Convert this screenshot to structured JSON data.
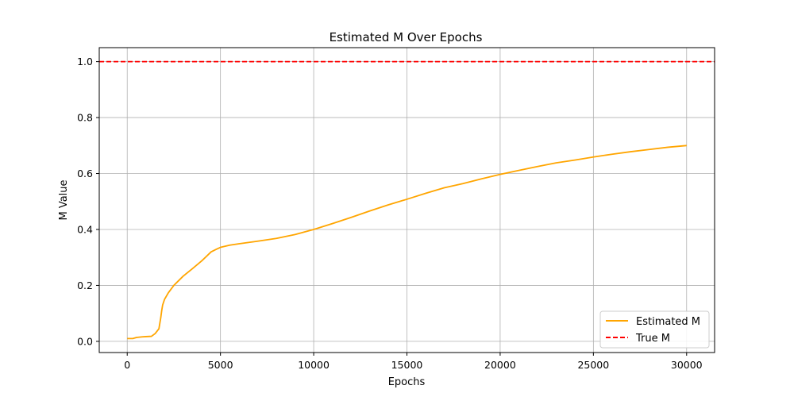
{
  "chart_data": {
    "type": "line",
    "title": "Estimated M Over Epochs",
    "xlabel": "Epochs",
    "ylabel": "M Value",
    "xlim": [
      -1500,
      31500
    ],
    "ylim": [
      -0.04,
      1.05
    ],
    "xticks": [
      0,
      5000,
      10000,
      15000,
      20000,
      25000,
      30000
    ],
    "xtick_labels": [
      "0",
      "5000",
      "10000",
      "15000",
      "20000",
      "25000",
      "30000"
    ],
    "yticks": [
      0.0,
      0.2,
      0.4,
      0.6,
      0.8,
      1.0
    ],
    "ytick_labels": [
      "0.0",
      "0.2",
      "0.4",
      "0.6",
      "0.8",
      "1.0"
    ],
    "grid": true,
    "legend": "lower-right",
    "series": [
      {
        "name": "Estimated M",
        "color": "#ffa500",
        "style": "solid",
        "x": [
          0,
          300,
          500,
          800,
          1000,
          1300,
          1500,
          1700,
          1800,
          1850,
          1900,
          2000,
          2200,
          2500,
          3000,
          3500,
          4000,
          4500,
          4800,
          5000,
          5500,
          6000,
          7000,
          8000,
          9000,
          10000,
          11000,
          12000,
          13000,
          14000,
          15000,
          16000,
          17000,
          18000,
          19000,
          20000,
          21000,
          22000,
          23000,
          24000,
          25000,
          26000,
          27000,
          28000,
          29000,
          30000
        ],
        "values": [
          0.01,
          0.01,
          0.014,
          0.016,
          0.017,
          0.018,
          0.028,
          0.045,
          0.085,
          0.11,
          0.13,
          0.15,
          0.173,
          0.2,
          0.233,
          0.26,
          0.288,
          0.32,
          0.33,
          0.336,
          0.344,
          0.349,
          0.358,
          0.368,
          0.382,
          0.4,
          0.421,
          0.443,
          0.466,
          0.488,
          0.508,
          0.529,
          0.549,
          0.564,
          0.581,
          0.597,
          0.611,
          0.625,
          0.638,
          0.648,
          0.659,
          0.669,
          0.678,
          0.686,
          0.694,
          0.7
        ]
      },
      {
        "name": "True M",
        "color": "#ff0000",
        "style": "dashed",
        "hline": 1.0
      }
    ]
  }
}
